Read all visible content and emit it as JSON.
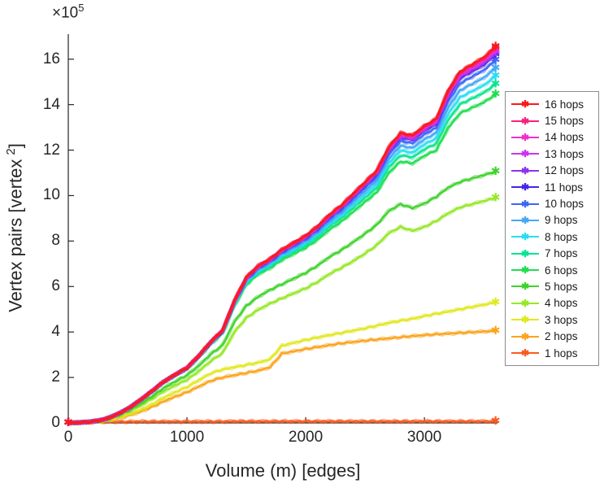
{
  "figure": {
    "exponent_label": "×10",
    "exponent_power": "5"
  },
  "axes": {
    "xlabel": "Volume (m) [edges]",
    "ylabel_main": "Vertex pairs [vertex",
    "ylabel_sup": "2",
    "ylabel_close": "]",
    "x_ticks": [
      0,
      1000,
      2000,
      3000
    ],
    "y_ticks": [
      0,
      2,
      4,
      6,
      8,
      10,
      12,
      14,
      16
    ],
    "xlim": [
      0,
      3616
    ],
    "ylim": [
      0,
      17.1
    ],
    "grid": "off",
    "axis_color": "#262626"
  },
  "legend": {
    "position": "right-outside",
    "marker": "asterisk"
  },
  "chart_data": {
    "type": "line",
    "title": "",
    "xlabel": "Volume (m) [edges]",
    "ylabel": "Vertex pairs [vertex^2]",
    "y_scale_factor": "1e5",
    "x_grid": [
      0,
      100,
      200,
      300,
      400,
      500,
      600,
      700,
      800,
      900,
      1000,
      1100,
      1200,
      1300,
      1400,
      1500,
      1600,
      1700,
      1800,
      1900,
      2000,
      2100,
      2200,
      2300,
      2400,
      2500,
      2600,
      2700,
      2800,
      2900,
      3000,
      3100,
      3200,
      3300,
      3400,
      3500,
      3600
    ],
    "cluster_end_ref": 16.2,
    "cluster_base": [
      0,
      0.02,
      0.06,
      0.15,
      0.35,
      0.62,
      0.98,
      1.38,
      1.8,
      2.12,
      2.42,
      2.95,
      3.55,
      4.05,
      5.35,
      6.35,
      6.85,
      7.15,
      7.55,
      7.85,
      8.15,
      8.55,
      9.05,
      9.45,
      9.95,
      10.45,
      10.95,
      11.95,
      12.55,
      12.45,
      12.85,
      13.15,
      14.35,
      15.15,
      15.45,
      15.75,
      16.2
    ],
    "series": [
      {
        "label": "16 hops",
        "color": "#fa1919",
        "kind": "cluster",
        "end": 16.55
      },
      {
        "label": "15 hops",
        "color": "#f5237d",
        "kind": "cluster",
        "end": 16.5
      },
      {
        "label": "14 hops",
        "color": "#ef2fc8",
        "kind": "cluster",
        "end": 16.42
      },
      {
        "label": "13 hops",
        "color": "#cc33f2",
        "kind": "cluster",
        "end": 16.34
      },
      {
        "label": "12 hops",
        "color": "#8c33f0",
        "kind": "cluster",
        "end": 16.27
      },
      {
        "label": "11 hops",
        "color": "#4724e8",
        "kind": "cluster",
        "end": 16.2
      },
      {
        "label": "10 hops",
        "color": "#3d66f5",
        "kind": "cluster",
        "end": 15.95
      },
      {
        "label": "9 hops",
        "color": "#46a8f5",
        "kind": "cluster",
        "end": 15.6
      },
      {
        "label": "8 hops",
        "color": "#29ddf2",
        "kind": "cluster",
        "end": 15.25
      },
      {
        "label": "7 hops",
        "color": "#0be392",
        "kind": "cluster",
        "end": 14.9
      },
      {
        "label": "6 hops",
        "color": "#21dd4f",
        "kind": "cluster",
        "end": 14.45
      },
      {
        "label": "5 hops",
        "color": "#3fd32b",
        "kind": "points",
        "values": [
          0,
          0.02,
          0.05,
          0.12,
          0.3,
          0.52,
          0.82,
          1.15,
          1.52,
          1.82,
          2.1,
          2.52,
          3.02,
          3.42,
          4.45,
          5.15,
          5.55,
          5.85,
          6.1,
          6.35,
          6.6,
          6.92,
          7.3,
          7.6,
          7.95,
          8.32,
          8.72,
          9.32,
          9.62,
          9.45,
          9.65,
          9.95,
          10.35,
          10.6,
          10.75,
          10.9,
          11.05
        ]
      },
      {
        "label": "4 hops",
        "color": "#95e827",
        "kind": "points",
        "values": [
          0,
          0.02,
          0.05,
          0.11,
          0.27,
          0.47,
          0.74,
          1.04,
          1.38,
          1.65,
          1.9,
          2.28,
          2.72,
          3.08,
          4.0,
          4.62,
          4.98,
          5.25,
          5.48,
          5.7,
          5.92,
          6.2,
          6.55,
          6.82,
          7.12,
          7.45,
          7.82,
          8.35,
          8.62,
          8.45,
          8.62,
          8.88,
          9.22,
          9.48,
          9.62,
          9.76,
          9.9
        ]
      },
      {
        "label": "3 hops",
        "color": "#e0e821",
        "kind": "points",
        "values": [
          0,
          0.01,
          0.03,
          0.08,
          0.2,
          0.36,
          0.56,
          0.8,
          1.1,
          1.35,
          1.58,
          1.88,
          2.18,
          2.35,
          2.45,
          2.55,
          2.65,
          2.8,
          3.4,
          3.52,
          3.65,
          3.76,
          3.86,
          3.96,
          4.06,
          4.16,
          4.28,
          4.4,
          4.5,
          4.58,
          4.7,
          4.8,
          4.9,
          5.0,
          5.1,
          5.2,
          5.3
        ]
      },
      {
        "label": "2 hops",
        "color": "#fba31c",
        "kind": "points",
        "values": [
          0,
          0.01,
          0.03,
          0.07,
          0.17,
          0.31,
          0.48,
          0.69,
          0.94,
          1.15,
          1.35,
          1.6,
          1.85,
          2.0,
          2.1,
          2.2,
          2.3,
          2.45,
          3.05,
          3.15,
          3.25,
          3.34,
          3.42,
          3.5,
          3.56,
          3.62,
          3.67,
          3.72,
          3.77,
          3.82,
          3.86,
          3.9,
          3.93,
          3.96,
          3.99,
          4.02,
          4.05
        ]
      },
      {
        "label": "1 hops",
        "color": "#fa5a1e",
        "kind": "points",
        "values": [
          0,
          0.04,
          0.05,
          0.05,
          0.05,
          0.05,
          0.06,
          0.06,
          0.06,
          0.06,
          0.06,
          0.06,
          0.06,
          0.06,
          0.07,
          0.07,
          0.07,
          0.07,
          0.07,
          0.07,
          0.07,
          0.07,
          0.07,
          0.07,
          0.07,
          0.07,
          0.07,
          0.07,
          0.07,
          0.07,
          0.07,
          0.07,
          0.07,
          0.07,
          0.07,
          0.07,
          0.07
        ]
      }
    ]
  }
}
